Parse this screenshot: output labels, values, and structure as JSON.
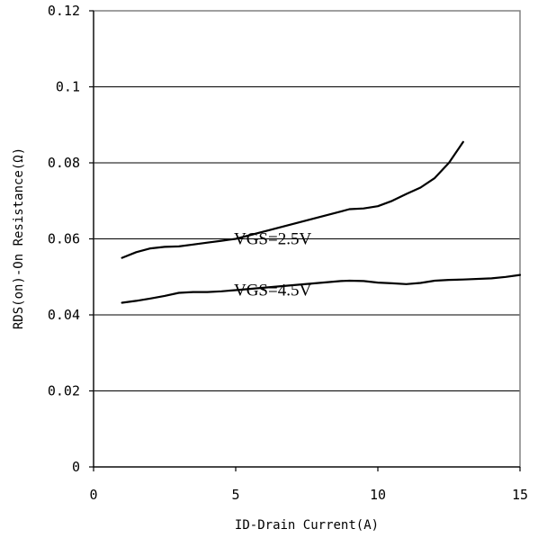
{
  "chart_data": {
    "type": "line",
    "xlabel": "ID-Drain Current(A)",
    "ylabel": "RDS(on)-On Resistance(Ω)",
    "xlim": [
      0,
      15
    ],
    "ylim": [
      0,
      0.12
    ],
    "x_ticks": [
      {
        "value": 0,
        "label": "0"
      },
      {
        "value": 5,
        "label": "5"
      },
      {
        "value": 10,
        "label": "10"
      },
      {
        "value": 15,
        "label": "15"
      }
    ],
    "y_ticks": [
      {
        "value": 0,
        "label": "0"
      },
      {
        "value": 0.02,
        "label": "0.02"
      },
      {
        "value": 0.04,
        "label": "0.04"
      },
      {
        "value": 0.06,
        "label": "0.06"
      },
      {
        "value": 0.08,
        "label": "0.08"
      },
      {
        "value": 0.1,
        "label": "0.1"
      },
      {
        "value": 0.12,
        "label": "0.12"
      }
    ],
    "grid": "horizontal",
    "series": [
      {
        "name": "VGS=2.5V",
        "points": [
          [
            1,
            0.055
          ],
          [
            1.5,
            0.0565
          ],
          [
            2,
            0.0575
          ],
          [
            2.5,
            0.0579
          ],
          [
            3,
            0.058
          ],
          [
            3.5,
            0.0585
          ],
          [
            4,
            0.059
          ],
          [
            4.5,
            0.0595
          ],
          [
            5,
            0.06
          ],
          [
            8.7,
            0.0672
          ],
          [
            9,
            0.0678
          ],
          [
            9.5,
            0.068
          ],
          [
            10,
            0.0686
          ],
          [
            10.5,
            0.07
          ],
          [
            11,
            0.0718
          ],
          [
            11.5,
            0.0735
          ],
          [
            12,
            0.076
          ],
          [
            12.5,
            0.08
          ],
          [
            13,
            0.0855
          ]
        ]
      },
      {
        "name": "VGS=4.5V",
        "points": [
          [
            1,
            0.0432
          ],
          [
            1.5,
            0.0437
          ],
          [
            2,
            0.0443
          ],
          [
            2.5,
            0.045
          ],
          [
            3,
            0.0458
          ],
          [
            3.5,
            0.046
          ],
          [
            4,
            0.046
          ],
          [
            4.5,
            0.0462
          ],
          [
            5,
            0.0465
          ],
          [
            8.7,
            0.0489
          ],
          [
            9,
            0.049
          ],
          [
            9.5,
            0.0489
          ],
          [
            10,
            0.0485
          ],
          [
            10.5,
            0.0483
          ],
          [
            11,
            0.0481
          ],
          [
            11.5,
            0.0484
          ],
          [
            12,
            0.049
          ],
          [
            12.5,
            0.0492
          ],
          [
            13,
            0.0493
          ],
          [
            14,
            0.0496
          ],
          [
            14.5,
            0.05
          ],
          [
            15,
            0.0505
          ]
        ]
      }
    ]
  }
}
